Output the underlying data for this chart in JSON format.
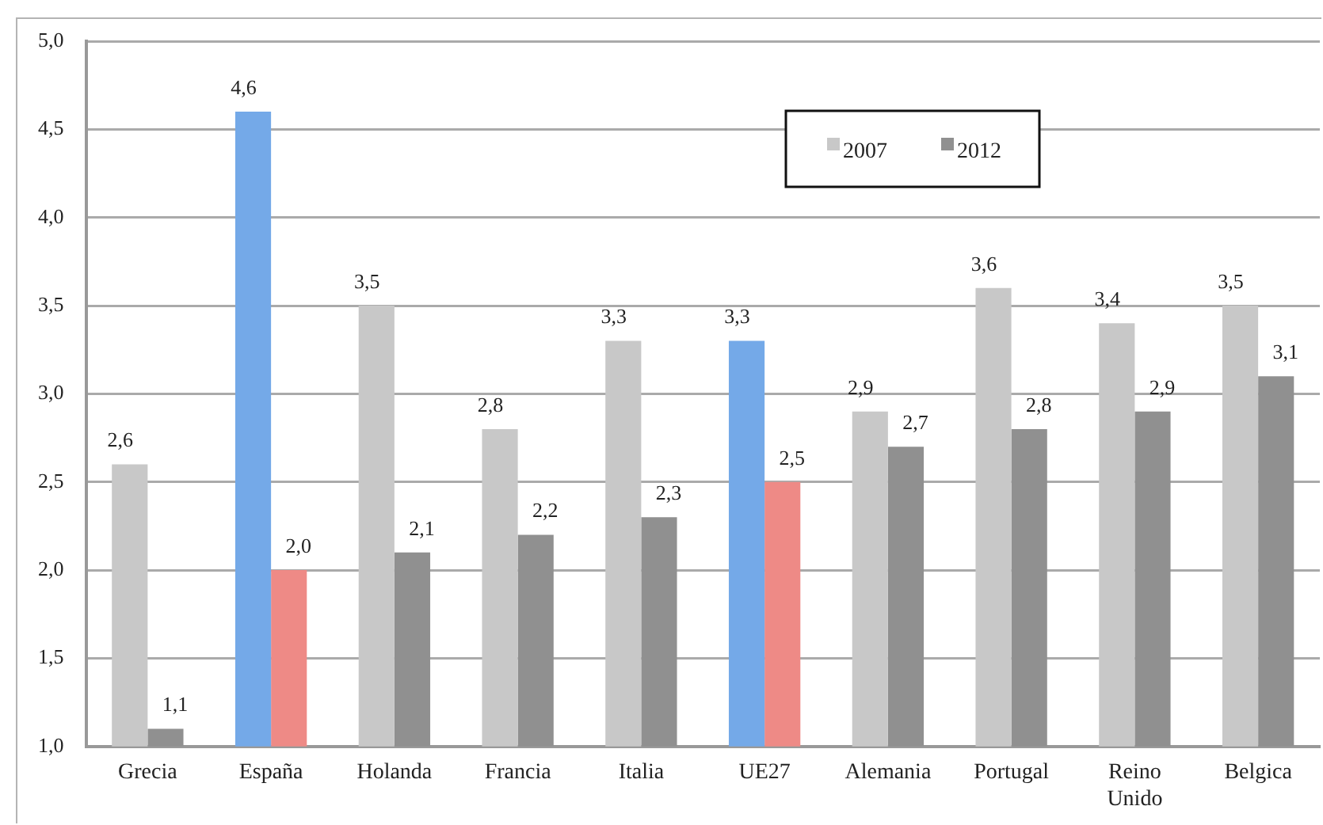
{
  "chart_data": {
    "type": "bar",
    "categories": [
      "Grecia",
      "España",
      "Holanda",
      "Francia",
      "Italia",
      "UE27",
      "Alemania",
      "Portugal",
      "Reino Unido",
      "Belgica"
    ],
    "series": [
      {
        "name": "2007",
        "color": "#c8c8c8",
        "colors": [
          "#c8c8c8",
          "#74a9e8",
          "#c8c8c8",
          "#c8c8c8",
          "#c8c8c8",
          "#74a9e8",
          "#c8c8c8",
          "#c8c8c8",
          "#c8c8c8",
          "#c8c8c8"
        ],
        "values": [
          2.6,
          4.6,
          3.5,
          2.8,
          3.3,
          3.3,
          2.9,
          3.6,
          3.4,
          3.5
        ],
        "value_labels": [
          "2,6",
          "4,6",
          "3,5",
          "2,8",
          "3,3",
          "3,3",
          "2,9",
          "3,6",
          "3,4",
          "3,5"
        ]
      },
      {
        "name": "2012",
        "color": "#909090",
        "colors": [
          "#909090",
          "#ee8a86",
          "#909090",
          "#909090",
          "#909090",
          "#ee8a86",
          "#909090",
          "#909090",
          "#909090",
          "#909090"
        ],
        "values": [
          1.1,
          2.0,
          2.1,
          2.2,
          2.3,
          2.5,
          2.7,
          2.8,
          2.9,
          3.1
        ],
        "value_labels": [
          "1,1",
          "2,0",
          "2,1",
          "2,2",
          "2,3",
          "2,5",
          "2,7",
          "2,8",
          "2,9",
          "3,1"
        ]
      }
    ],
    "ylim": [
      1,
      5
    ],
    "yticks": [
      {
        "value": 1,
        "label": "1,0"
      },
      {
        "value": 1.5,
        "label": "1,5"
      },
      {
        "value": 2,
        "label": "2,0"
      },
      {
        "value": 2.5,
        "label": "2,5"
      },
      {
        "value": 3,
        "label": "3,0"
      },
      {
        "value": 3.5,
        "label": "3,5"
      },
      {
        "value": 4,
        "label": "4,0"
      },
      {
        "value": 4.5,
        "label": "4,5"
      },
      {
        "value": 5,
        "label": "5,0"
      }
    ],
    "grid": "y",
    "legend": "top right"
  }
}
